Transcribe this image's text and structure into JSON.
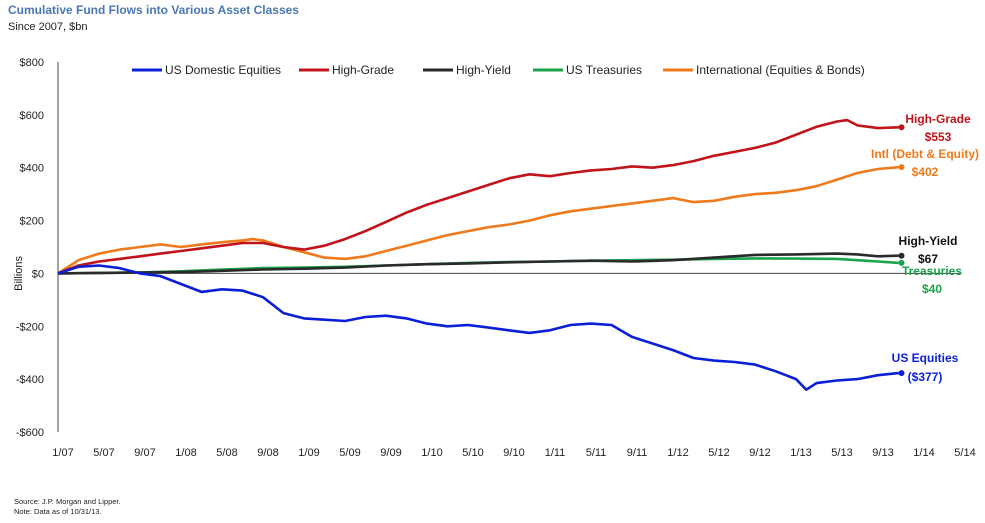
{
  "chart_data": {
    "type": "line",
    "title": "Cumulative Fund Flows into Various Asset Classes",
    "subtitle": "Since 2007, $bn",
    "ylabel": "Billions",
    "xlabel": "",
    "ylim": [
      -600,
      800
    ],
    "yticks": [
      800,
      600,
      400,
      200,
      0,
      -200,
      -400,
      -600
    ],
    "ytick_labels": [
      "$800",
      "$600",
      "$400",
      "$200",
      "$0",
      "-$200",
      "-$400",
      "-$600"
    ],
    "xlim": [
      0,
      88
    ],
    "x_tick_positions": [
      0,
      4,
      8,
      12,
      16,
      20,
      24,
      28,
      32,
      36,
      40,
      44,
      48,
      52,
      56,
      60,
      64,
      68,
      72,
      76,
      80,
      84,
      88
    ],
    "x_tick_labels": [
      "1/07",
      "5/07",
      "9/07",
      "1/08",
      "5/08",
      "9/08",
      "1/09",
      "5/09",
      "9/09",
      "1/10",
      "5/10",
      "9/10",
      "1/11",
      "5/11",
      "9/11",
      "1/12",
      "5/12",
      "9/12",
      "1/13",
      "5/13",
      "9/13",
      "1/14",
      "5/14"
    ],
    "legend_position": "top",
    "series": [
      {
        "name": "US Domestic Equities",
        "color": "#0a1fd6",
        "x": [
          0,
          2,
          4,
          6,
          8,
          10,
          12,
          14,
          16,
          18,
          20,
          22,
          24,
          26,
          28,
          30,
          32,
          34,
          36,
          38,
          40,
          42,
          44,
          46,
          48,
          50,
          52,
          54,
          56,
          58,
          60,
          62,
          64,
          66,
          68,
          70,
          72,
          73,
          74,
          76,
          78,
          80,
          82
        ],
        "values": [
          0,
          25,
          30,
          20,
          0,
          -10,
          -40,
          -70,
          -60,
          -65,
          -90,
          -150,
          -170,
          -175,
          -180,
          -165,
          -160,
          -170,
          -190,
          -200,
          -195,
          -205,
          -215,
          -225,
          -215,
          -195,
          -190,
          -195,
          -240,
          -265,
          -290,
          -320,
          -330,
          -335,
          -345,
          -370,
          -400,
          -440,
          -415,
          -405,
          -400,
          -385,
          -377
        ]
      },
      {
        "name": "High-Grade",
        "color": "#c0141a",
        "x": [
          0,
          2,
          4,
          6,
          8,
          10,
          12,
          14,
          16,
          18,
          20,
          22,
          24,
          26,
          28,
          30,
          32,
          34,
          36,
          38,
          40,
          42,
          44,
          46,
          48,
          50,
          52,
          54,
          56,
          58,
          60,
          62,
          64,
          66,
          68,
          70,
          72,
          74,
          76,
          77,
          78,
          80,
          82
        ],
        "values": [
          0,
          30,
          45,
          55,
          65,
          75,
          85,
          95,
          105,
          115,
          115,
          100,
          90,
          105,
          130,
          160,
          195,
          230,
          260,
          285,
          310,
          335,
          360,
          375,
          368,
          380,
          390,
          395,
          405,
          400,
          410,
          425,
          445,
          460,
          475,
          495,
          525,
          555,
          575,
          580,
          560,
          550,
          553
        ]
      },
      {
        "name": "High-Yield",
        "color": "#2a2a2a",
        "x": [
          0,
          4,
          8,
          12,
          16,
          20,
          24,
          28,
          32,
          36,
          40,
          44,
          48,
          52,
          56,
          60,
          64,
          68,
          72,
          76,
          78,
          80,
          82
        ],
        "values": [
          0,
          2,
          3,
          5,
          10,
          15,
          18,
          22,
          30,
          35,
          38,
          42,
          45,
          48,
          45,
          50,
          60,
          70,
          72,
          75,
          72,
          65,
          67
        ]
      },
      {
        "name": "US Treasuries",
        "color": "#1aa34a",
        "x": [
          0,
          4,
          8,
          12,
          16,
          20,
          24,
          28,
          32,
          36,
          40,
          44,
          48,
          52,
          56,
          60,
          64,
          68,
          72,
          76,
          78,
          80,
          82
        ],
        "values": [
          0,
          2,
          4,
          8,
          15,
          20,
          22,
          25,
          30,
          35,
          40,
          43,
          45,
          48,
          50,
          52,
          55,
          57,
          56,
          55,
          50,
          45,
          40
        ]
      },
      {
        "name": "International (Equities & Bonds)",
        "color": "#ee7a1c",
        "x": [
          0,
          2,
          4,
          6,
          8,
          10,
          12,
          14,
          16,
          18,
          19,
          20,
          22,
          24,
          26,
          28,
          30,
          32,
          34,
          36,
          38,
          40,
          42,
          44,
          46,
          48,
          50,
          52,
          54,
          56,
          58,
          60,
          62,
          64,
          66,
          68,
          70,
          72,
          74,
          76,
          78,
          80,
          82
        ],
        "values": [
          0,
          50,
          75,
          90,
          100,
          110,
          100,
          110,
          118,
          125,
          130,
          125,
          100,
          80,
          60,
          55,
          65,
          85,
          105,
          125,
          145,
          160,
          175,
          185,
          200,
          220,
          235,
          245,
          255,
          265,
          275,
          285,
          270,
          275,
          290,
          300,
          305,
          315,
          330,
          355,
          380,
          395,
          402
        ]
      }
    ],
    "annotations": [
      {
        "series": "High-Grade",
        "line1": "High-Grade",
        "line2": "$553",
        "color": "#c0141a"
      },
      {
        "series": "International (Equities & Bonds)",
        "line1": "Intl (Debt & Equity)",
        "line2": "$402",
        "color": "#ee7a1c"
      },
      {
        "series": "High-Yield",
        "line1": "High-Yield",
        "line2": "$67",
        "color": "#111111"
      },
      {
        "series": "US Treasuries",
        "line1": "Treasuries",
        "line2": "$40",
        "color": "#1aa34a"
      },
      {
        "series": "US Domestic Equities",
        "line1": "US Equities",
        "line2": "($377)",
        "color": "#0a1fd6"
      }
    ]
  },
  "footer": {
    "source": "Source: J.P. Morgan and Lipper.",
    "note": "Note: Data as of 10/31/13."
  }
}
